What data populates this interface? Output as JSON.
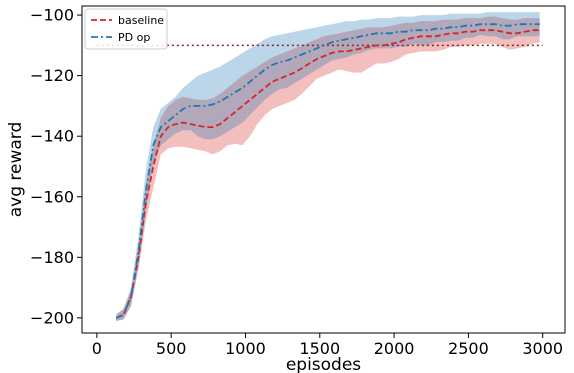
{
  "chart_data": {
    "type": "line",
    "xlabel": "episodes",
    "ylabel": "avg reward",
    "xlim": [
      -100,
      3150
    ],
    "ylim": [
      -205,
      -97
    ],
    "xticks": [
      0,
      500,
      1000,
      1500,
      2000,
      2500,
      3000
    ],
    "yticks": [
      -200,
      -180,
      -160,
      -140,
      -120,
      -100
    ],
    "xtick_labels": [
      "0",
      "500",
      "1000",
      "1500",
      "2000",
      "2500",
      "3000"
    ],
    "ytick_labels": [
      "−200",
      "−180",
      "−160",
      "−140",
      "−120",
      "−100"
    ],
    "legend": {
      "placement": "upper-left"
    },
    "threshold": {
      "y": -110,
      "color": "#8b2222",
      "style": "dotted"
    },
    "x": [
      130,
      180,
      230,
      280,
      330,
      380,
      430,
      480,
      530,
      580,
      630,
      680,
      730,
      780,
      830,
      880,
      930,
      980,
      1030,
      1080,
      1130,
      1180,
      1230,
      1280,
      1330,
      1380,
      1430,
      1480,
      1530,
      1580,
      1630,
      1680,
      1730,
      1780,
      1830,
      1880,
      1930,
      1980,
      2030,
      2080,
      2130,
      2180,
      2230,
      2280,
      2330,
      2380,
      2430,
      2480,
      2530,
      2580,
      2630,
      2680,
      2730,
      2780,
      2830,
      2880,
      2930,
      2980
    ],
    "series": [
      {
        "name": "baseline",
        "color": "#d62728",
        "dash": "dashed",
        "values": [
          -200,
          -199,
          -193,
          -180,
          -162,
          -150,
          -140,
          -137,
          -136,
          -135.5,
          -136,
          -136.5,
          -137,
          -137,
          -136,
          -134,
          -132,
          -130,
          -128,
          -126,
          -124,
          -122,
          -121,
          -120,
          -119,
          -117.5,
          -116,
          -114.5,
          -113.5,
          -112.5,
          -112,
          -112,
          -111.5,
          -111,
          -110.5,
          -110,
          -110,
          -109.5,
          -109,
          -108,
          -107.5,
          -107,
          -107,
          -107,
          -106.5,
          -106,
          -106,
          -105.5,
          -105.5,
          -105,
          -105,
          -105,
          -105.5,
          -106,
          -106,
          -105.5,
          -105,
          -105
        ],
        "upper": [
          -199,
          -197,
          -191,
          -176,
          -156,
          -143,
          -134,
          -130,
          -128,
          -127,
          -127.5,
          -128,
          -128,
          -127.5,
          -126,
          -124,
          -122,
          -120,
          -118.5,
          -117,
          -115.5,
          -114,
          -113,
          -112,
          -111,
          -110,
          -109,
          -108,
          -107,
          -106.5,
          -106,
          -105.5,
          -105,
          -104.5,
          -104,
          -104,
          -104,
          -103.5,
          -103,
          -102.5,
          -102.5,
          -102,
          -102,
          -102,
          -101.5,
          -101.5,
          -101.5,
          -101,
          -101,
          -101,
          -100.5,
          -100.5,
          -101,
          -101.5,
          -101.5,
          -101,
          -101,
          -101
        ],
        "lower": [
          -201,
          -200.5,
          -196,
          -184,
          -168,
          -157,
          -146,
          -144,
          -143.5,
          -143.5,
          -144,
          -144.5,
          -145,
          -146,
          -145,
          -143,
          -142.5,
          -143,
          -140,
          -136,
          -133,
          -131,
          -130,
          -129,
          -128,
          -126,
          -123.5,
          -121,
          -120,
          -119,
          -118,
          -118.5,
          -119,
          -119,
          -117.5,
          -116,
          -116,
          -115.5,
          -114.5,
          -113,
          -112.5,
          -112,
          -112,
          -112,
          -111.5,
          -110.5,
          -110.5,
          -110,
          -110,
          -109.5,
          -109.5,
          -109.5,
          -110.5,
          -111.5,
          -111,
          -110.5,
          -109.5,
          -109
        ]
      },
      {
        "name": "PD op",
        "color": "#1f77b4",
        "dash": "dashdot",
        "values": [
          -200,
          -199,
          -193,
          -178,
          -158,
          -143,
          -137,
          -135,
          -133,
          -131,
          -130,
          -130,
          -130,
          -129.5,
          -128.5,
          -127,
          -125.5,
          -124,
          -122,
          -120,
          -118,
          -116.5,
          -115.5,
          -115,
          -114,
          -113,
          -112,
          -111,
          -110,
          -109,
          -108.5,
          -108,
          -107.5,
          -107,
          -106.5,
          -106,
          -106,
          -106,
          -105.5,
          -105.5,
          -105,
          -105,
          -105,
          -104.5,
          -104.5,
          -104,
          -104,
          -103.5,
          -103.5,
          -103,
          -103,
          -103,
          -103.5,
          -103.5,
          -103,
          -103,
          -103,
          -103
        ],
        "upper": [
          -199,
          -197,
          -190,
          -173,
          -151,
          -137,
          -131,
          -129,
          -127,
          -124,
          -122,
          -120,
          -119,
          -118,
          -117,
          -115.5,
          -114,
          -112.5,
          -111,
          -109.5,
          -108,
          -107,
          -106.5,
          -106,
          -105.5,
          -105,
          -104.5,
          -104,
          -103.5,
          -103,
          -102.5,
          -102,
          -102,
          -101.5,
          -101.5,
          -101,
          -101,
          -101,
          -100.5,
          -100.5,
          -100.5,
          -100,
          -100,
          -100,
          -100,
          -99.5,
          -99.5,
          -99.5,
          -99.5,
          -99.5,
          -99,
          -99,
          -99,
          -99,
          -99,
          -99,
          -99,
          -99
        ],
        "lower": [
          -201,
          -200.5,
          -196,
          -183,
          -165,
          -149,
          -143,
          -141,
          -139,
          -138,
          -138,
          -140,
          -141,
          -141,
          -140,
          -138.5,
          -137,
          -135.5,
          -133,
          -130.5,
          -128,
          -126,
          -124.5,
          -124,
          -122.5,
          -121,
          -119.5,
          -118,
          -116.5,
          -115,
          -114.5,
          -114,
          -113,
          -112.5,
          -111.5,
          -111,
          -111,
          -111,
          -110.5,
          -110.5,
          -109.5,
          -110,
          -110,
          -109,
          -109,
          -108.5,
          -108.5,
          -107.5,
          -107.5,
          -106.5,
          -107,
          -107,
          -108,
          -108,
          -107,
          -107,
          -107,
          -107
        ]
      }
    ]
  }
}
